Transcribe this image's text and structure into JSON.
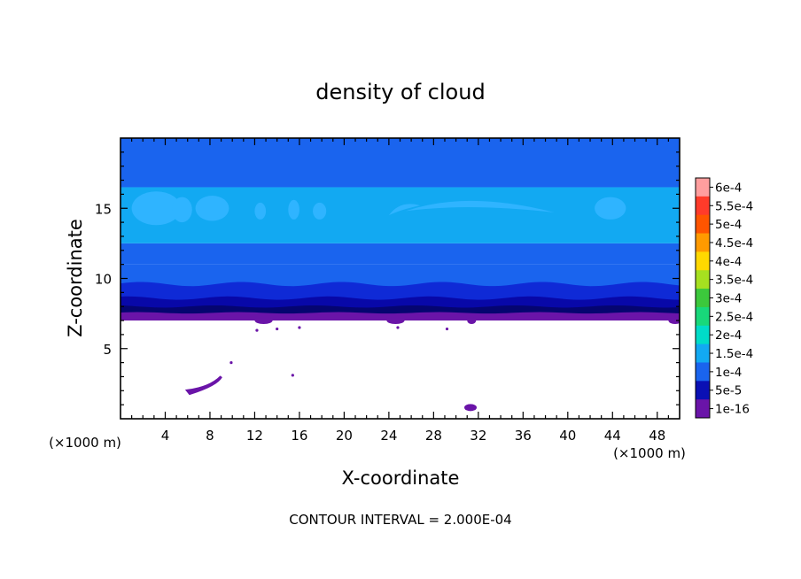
{
  "chart_data": {
    "type": "heatmap",
    "title": "density of cloud",
    "xlabel": "X-coordinate",
    "ylabel": "Z-coordinate",
    "x_unit": "(×1000 m)",
    "xlim": [
      0,
      50
    ],
    "ylim": [
      0,
      20
    ],
    "x_ticks": [
      4,
      8,
      12,
      16,
      20,
      24,
      28,
      32,
      36,
      40,
      44,
      48
    ],
    "y_ticks": [
      5,
      10,
      15
    ],
    "footer": "CONTOUR INTERVAL = 2.000E-04",
    "cloud_base_z": 7.0,
    "vertical_profile": [
      {
        "z_top": 7.6,
        "level": "1e-16"
      },
      {
        "z_top": 8.2,
        "level": "5e-5"
      },
      {
        "z_top": 9.2,
        "level": "5e-5"
      },
      {
        "z_top": 10.0,
        "level": "1e-4"
      },
      {
        "z_top": 11.0,
        "level": "1e-4"
      },
      {
        "z_top": 12.5,
        "level": "1e-4"
      },
      {
        "z_top": 16.5,
        "level": "1.5e-4"
      },
      {
        "z_top": 20.0,
        "level": "1e-4"
      }
    ],
    "colorbar": {
      "labels": [
        "6e-4",
        "5.5e-4",
        "5e-4",
        "4.5e-4",
        "4e-4",
        "3.5e-4",
        "3e-4",
        "2.5e-4",
        "2e-4",
        "1.5e-4",
        "1e-4",
        "5e-5",
        "1e-16"
      ],
      "colors": [
        "#ff9e9e",
        "#ff3b2a",
        "#ff5500",
        "#ff9a00",
        "#ffd800",
        "#a6e020",
        "#3cc83c",
        "#18d87a",
        "#00dcc8",
        "#12a9f2",
        "#1a64ee",
        "#0a10b4",
        "#6a14a8"
      ]
    }
  }
}
